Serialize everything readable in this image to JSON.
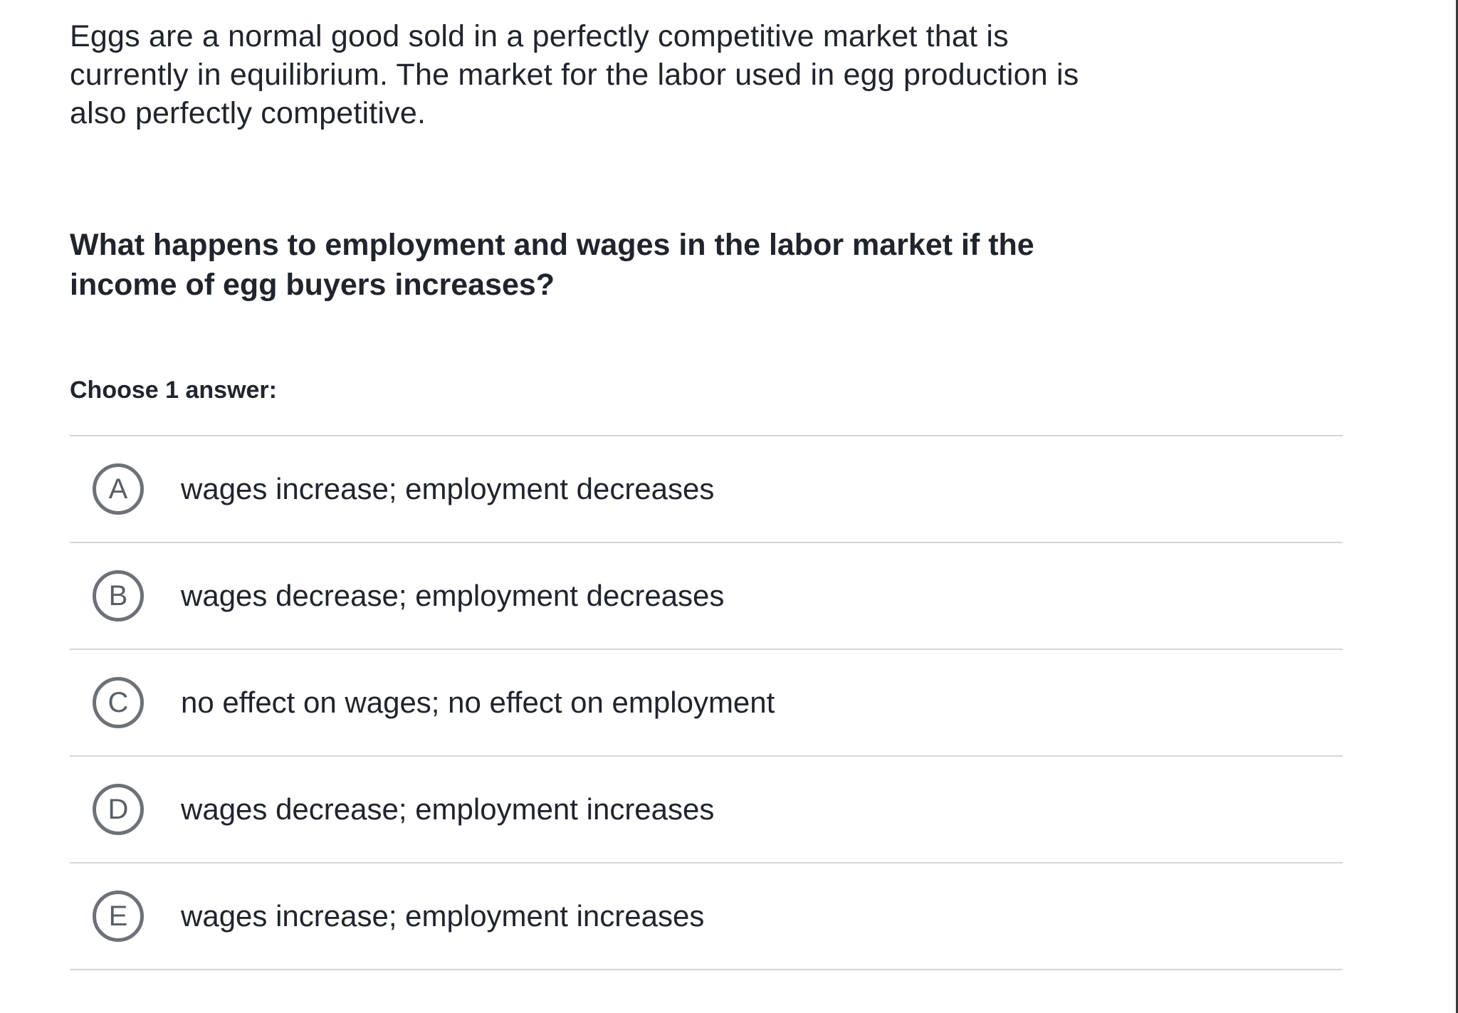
{
  "page": {
    "background_color": "#ffffff",
    "text_color": "#21242c",
    "divider_color": "#d5d6d8",
    "radio_border_color": "#6e7176",
    "radio_letter_color": "#5a5f66",
    "right_edge_color": "#3c3c3c"
  },
  "question": {
    "intro_lines": [
      "Eggs are a normal good sold in a perfectly competitive market that is",
      "currently in equilibrium. The market for the labor used in egg production is",
      "also perfectly competitive."
    ],
    "intro_text": "Eggs are a normal good sold in a perfectly competitive market that is currently in equilibrium. The market for the labor used in egg production is also perfectly competitive.",
    "prompt_lines": [
      "What happens to employment and wages in the labor market if the",
      "income of egg buyers increases?"
    ],
    "prompt_text": "What happens to employment and wages in the labor market if the income of egg buyers increases?",
    "choose_label": "Choose 1 answer:"
  },
  "options": [
    {
      "letter": "A",
      "text": "wages increase; employment decreases"
    },
    {
      "letter": "B",
      "text": "wages decrease; employment decreases"
    },
    {
      "letter": "C",
      "text": "no effect on wages; no effect on employment"
    },
    {
      "letter": "D",
      "text": "wages decrease; employment increases"
    },
    {
      "letter": "E",
      "text": "wages increase; employment increases"
    }
  ]
}
